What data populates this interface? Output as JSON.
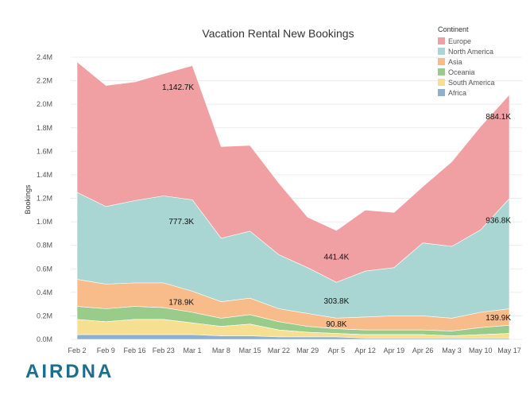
{
  "brand": {
    "logo_text": "AIRDNA",
    "color": "#1d6e8c"
  },
  "chart_data": {
    "type": "area",
    "stacked": true,
    "title": "Vacation Rental New Bookings",
    "ylabel": "Bookings",
    "xlabel": "",
    "x": [
      "Feb 2",
      "Feb 9",
      "Feb 16",
      "Feb 23",
      "Mar 1",
      "Mar 8",
      "Mar 15",
      "Mar 22",
      "Mar 29",
      "Apr 5",
      "Apr 12",
      "Apr 19",
      "Apr 26",
      "May 3",
      "May 10",
      "May 17"
    ],
    "ylim": [
      0,
      2400000
    ],
    "y_ticks": [
      {
        "value": 0,
        "label": "0.0M"
      },
      {
        "value": 200000,
        "label": "0.2M"
      },
      {
        "value": 400000,
        "label": "0.4M"
      },
      {
        "value": 600000,
        "label": "0.6M"
      },
      {
        "value": 800000,
        "label": "0.8M"
      },
      {
        "value": 1000000,
        "label": "1.0M"
      },
      {
        "value": 1200000,
        "label": "1.2M"
      },
      {
        "value": 1400000,
        "label": "1.4M"
      },
      {
        "value": 1600000,
        "label": "1.6M"
      },
      {
        "value": 1800000,
        "label": "1.8M"
      },
      {
        "value": 2000000,
        "label": "2.0M"
      },
      {
        "value": 2200000,
        "label": "2.2M"
      },
      {
        "value": 2400000,
        "label": "2.4M"
      }
    ],
    "grid": true,
    "legend": {
      "title": "Continent",
      "position": "top-right"
    },
    "series_stack_order": [
      "Africa",
      "South America",
      "Oceania",
      "Asia",
      "North America",
      "Europe"
    ],
    "series": [
      {
        "name": "Europe",
        "color": "#f0a0a3",
        "values": [
          1110000,
          1030000,
          1010000,
          1040000,
          1142700,
          780000,
          730000,
          610000,
          430000,
          441400,
          520000,
          470000,
          480000,
          720000,
          880000,
          884100
        ]
      },
      {
        "name": "North America",
        "color": "#a9d6d2",
        "values": [
          740000,
          660000,
          700000,
          740000,
          777300,
          540000,
          570000,
          460000,
          390000,
          303800,
          390000,
          410000,
          620000,
          610000,
          700000,
          936800
        ]
      },
      {
        "name": "Asia",
        "color": "#f8bb8a",
        "values": [
          230000,
          210000,
          200000,
          210000,
          178900,
          140000,
          140000,
          110000,
          110000,
          90800,
          110000,
          120000,
          120000,
          110000,
          130000,
          139900
        ]
      },
      {
        "name": "Oceania",
        "color": "#99cc8a",
        "values": [
          110000,
          110000,
          110000,
          100000,
          90000,
          70000,
          80000,
          70000,
          50000,
          40000,
          40000,
          40000,
          40000,
          40000,
          60000,
          70000
        ]
      },
      {
        "name": "South America",
        "color": "#f7df91",
        "values": [
          130000,
          110000,
          130000,
          130000,
          100000,
          80000,
          100000,
          60000,
          40000,
          30000,
          30000,
          30000,
          30000,
          20000,
          30000,
          40000
        ]
      },
      {
        "name": "Africa",
        "color": "#8eb0cc",
        "values": [
          40000,
          40000,
          40000,
          40000,
          40000,
          30000,
          30000,
          20000,
          20000,
          20000,
          10000,
          10000,
          10000,
          10000,
          10000,
          10000
        ]
      }
    ],
    "annotations": [
      {
        "series": "Europe",
        "x": "Mar 1",
        "text": "1,142.7K",
        "anchor": "end"
      },
      {
        "series": "Europe",
        "x": "Apr 5",
        "text": "441.4K",
        "anchor": "middle"
      },
      {
        "series": "Europe",
        "x": "May 17",
        "text": "884.1K",
        "anchor": "end"
      },
      {
        "series": "North America",
        "x": "Mar 1",
        "text": "777.3K",
        "anchor": "end"
      },
      {
        "series": "North America",
        "x": "Apr 5",
        "text": "303.8K",
        "anchor": "middle"
      },
      {
        "series": "North America",
        "x": "May 17",
        "text": "936.8K",
        "anchor": "end"
      },
      {
        "series": "Asia",
        "x": "Mar 1",
        "text": "178.9K",
        "anchor": "end"
      },
      {
        "series": "Asia",
        "x": "Apr 5",
        "text": "90.8K",
        "anchor": "middle"
      },
      {
        "series": "Asia",
        "x": "May 17",
        "text": "139.9K",
        "anchor": "end"
      }
    ]
  }
}
